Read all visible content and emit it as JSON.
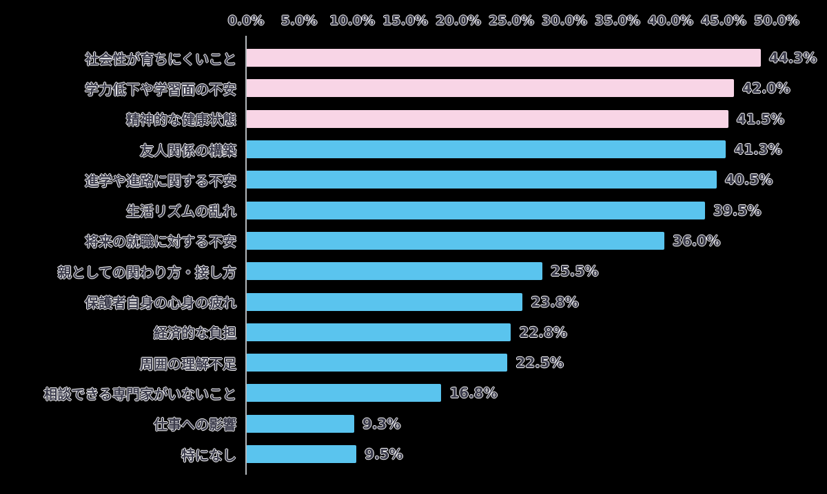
{
  "chart_data": {
    "type": "bar",
    "orientation": "horizontal",
    "title": "",
    "xlabel": "",
    "ylabel": "",
    "xlim": [
      0,
      50
    ],
    "grid": false,
    "legend": false,
    "x_ticks": [
      "0.0%",
      "5.0%",
      "10.0%",
      "15.0%",
      "20.0%",
      "25.0%",
      "30.0%",
      "35.0%",
      "40.0%",
      "45.0%",
      "50.0%"
    ],
    "categories": [
      "社会性が育ちにくいこと",
      "学力低下や学習面の不安",
      "精神的な健康状態",
      "友人関係の構築",
      "進学や進路に関する不安",
      "生活リズムの乱れ",
      "将来の就職に対する不安",
      "親としての関わり方・接し方",
      "保護者自身の心身の疲れ",
      "経済的な負担",
      "周囲の理解不足",
      "相談できる専門家がいないこと",
      "仕事への影響",
      "特になし"
    ],
    "values": [
      44.3,
      42.0,
      41.5,
      41.3,
      40.5,
      39.5,
      36.0,
      25.5,
      23.8,
      22.8,
      22.5,
      16.8,
      9.3,
      9.5
    ],
    "value_labels": [
      "44.3%",
      "42.0%",
      "41.5%",
      "41.3%",
      "40.5%",
      "39.5%",
      "36.0%",
      "25.5%",
      "23.8%",
      "22.8%",
      "22.5%",
      "16.8%",
      "9.3%",
      "9.5%"
    ],
    "bar_color_keys": [
      "pink",
      "pink",
      "pink",
      "blue",
      "blue",
      "blue",
      "blue",
      "blue",
      "blue",
      "blue",
      "blue",
      "blue",
      "blue",
      "blue"
    ],
    "colors": {
      "pink_bar": "#f8d5e6",
      "blue_bar": "#5ac4ee",
      "background": "#000000",
      "text": "#3c3c4c",
      "text_halo": "#ffffff",
      "axis_line": "#b4b9bd"
    }
  }
}
